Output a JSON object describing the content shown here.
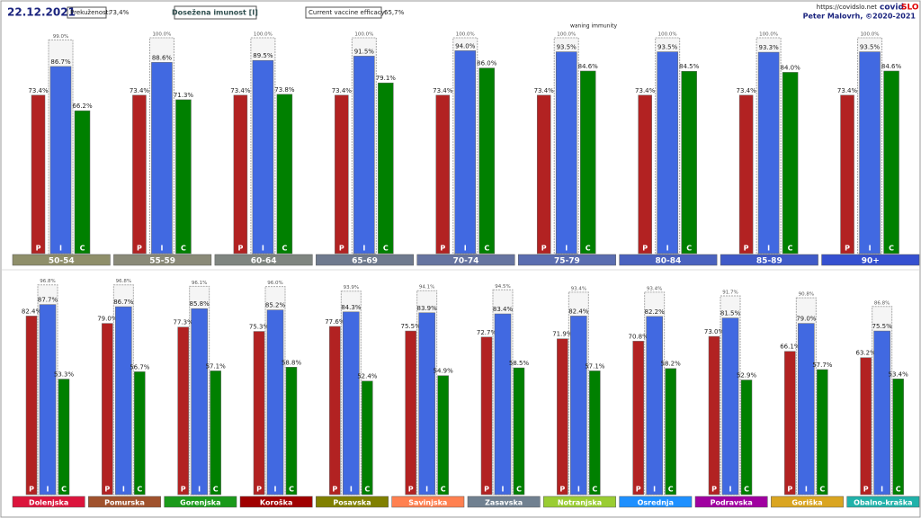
{
  "header": {
    "date": "22.12.2021",
    "prevalence_label": "Prekuženost:",
    "prevalence_value": "73,4%",
    "immunity_title": "Dosežena imunost [I]",
    "efficacy_label": "Current vaccine efficacy:",
    "efficacy_value": "65,7%",
    "url": "https://covidslo.net",
    "brand_a": "covid",
    "brand_b": "SLO",
    "author": "Peter Malovrh, ©2020-2021",
    "note": "waning immunity"
  },
  "chart_data": [
    {
      "type": "bar",
      "ylim": [
        0,
        100
      ],
      "categories": [
        "50-54",
        "55-59",
        "60-64",
        "65-69",
        "70-74",
        "75-79",
        "80-84",
        "85-89",
        "90+"
      ],
      "category_colors": [
        "#8f8f6a",
        "#8a8a78",
        "#7f8580",
        "#6f7a8e",
        "#6674a0",
        "#5a6db0",
        "#4a62bf",
        "#3f5ac8",
        "#3550d0"
      ],
      "series": [
        {
          "name": "P",
          "color": "#b22222",
          "values": [
            73.4,
            73.4,
            73.4,
            73.4,
            73.4,
            73.4,
            73.4,
            73.4,
            73.4
          ],
          "value_labels": [
            "73.4%",
            "73.4%",
            "73.4%",
            "73.4%",
            "73.4%",
            "73.4%",
            "73.4%",
            "73.4%",
            "73.4%"
          ]
        },
        {
          "name": "I",
          "color": "#4169e1",
          "values": [
            86.7,
            88.6,
            89.5,
            91.5,
            94.0,
            93.5,
            93.5,
            93.3,
            93.5
          ],
          "value_labels": [
            "86.7%",
            "88.6%",
            "89.5%",
            "91.5%",
            "94.0%",
            "93.5%",
            "93.5%",
            "93.3%",
            "93.5%"
          ]
        },
        {
          "name": "C",
          "color": "#008000",
          "values": [
            66.2,
            71.3,
            73.8,
            79.1,
            86.0,
            84.6,
            84.5,
            84.0,
            84.6
          ],
          "value_labels": [
            "66.2%",
            "71.3%",
            "73.8%",
            "79.1%",
            "86.0%",
            "84.6%",
            "84.5%",
            "84.0%",
            "84.6%"
          ]
        }
      ],
      "ceiling": {
        "values": [
          99.0,
          100.0,
          100.0,
          100.0,
          100.0,
          100.0,
          100.0,
          100.0,
          100.0
        ],
        "value_labels": [
          "99.0%",
          "100.0%",
          "100.0%",
          "100.0%",
          "100.0%",
          "100.0%",
          "100.0%",
          "100.0%",
          "100.0%"
        ]
      }
    },
    {
      "type": "bar",
      "ylim": [
        0,
        100
      ],
      "categories": [
        "Dolenjska",
        "Pomurska",
        "Gorenjska",
        "Koroška",
        "Posavska",
        "Savinjska",
        "Zasavska",
        "Notranjska",
        "Osrednja",
        "Podravska",
        "Goriška",
        "Obalno-kraška"
      ],
      "category_colors": [
        "#dc143c",
        "#a0522d",
        "#1a9a1a",
        "#a00000",
        "#808000",
        "#ff8050",
        "#708090",
        "#9acd32",
        "#1e90ff",
        "#a000a0",
        "#daa520",
        "#20b2aa"
      ],
      "series": [
        {
          "name": "P",
          "color": "#b22222",
          "values": [
            82.4,
            79.0,
            77.3,
            75.3,
            77.6,
            75.5,
            72.7,
            71.9,
            70.8,
            73.0,
            66.1,
            63.2
          ],
          "value_labels": [
            "82.4%",
            "79.0%",
            "77.3%",
            "75.3%",
            "77.6%",
            "75.5%",
            "72.7%",
            "71.9%",
            "70.8%",
            "73.0%",
            "66.1%",
            "63.2%"
          ]
        },
        {
          "name": "I",
          "color": "#4169e1",
          "values": [
            87.7,
            86.7,
            85.8,
            85.2,
            84.3,
            83.9,
            83.4,
            82.4,
            82.2,
            81.5,
            79.0,
            75.5
          ],
          "value_labels": [
            "87.7%",
            "86.7%",
            "85.8%",
            "85.2%",
            "84.3%",
            "83.9%",
            "83.4%",
            "82.4%",
            "82.2%",
            "81.5%",
            "79.0%",
            "75.5%"
          ]
        },
        {
          "name": "C",
          "color": "#008000",
          "values": [
            53.3,
            56.7,
            57.1,
            58.8,
            52.4,
            54.9,
            58.5,
            57.1,
            58.2,
            52.9,
            57.7,
            53.4
          ],
          "value_labels": [
            "53.3%",
            "56.7%",
            "57.1%",
            "58.8%",
            "52.4%",
            "54.9%",
            "58.5%",
            "57.1%",
            "58.2%",
            "52.9%",
            "57.7%",
            "53.4%"
          ]
        }
      ],
      "ceiling": {
        "values": [
          96.8,
          96.8,
          96.1,
          96.0,
          93.9,
          94.1,
          94.5,
          93.4,
          93.4,
          91.7,
          90.8,
          86.8
        ],
        "value_labels": [
          "96.8%",
          "96.8%",
          "96.1%",
          "96.0%",
          "93.9%",
          "94.1%",
          "94.5%",
          "93.4%",
          "93.4%",
          "91.7%",
          "90.8%",
          "86.8%"
        ]
      }
    }
  ]
}
